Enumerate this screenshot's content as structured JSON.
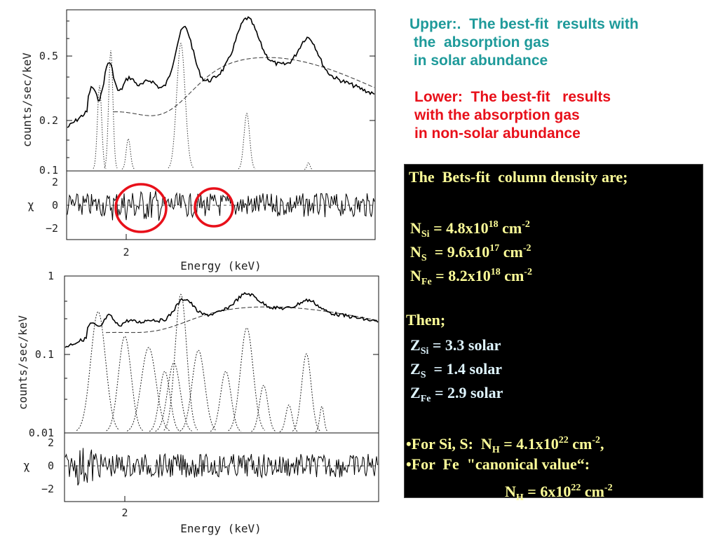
{
  "figure": {
    "upper_panel": {
      "y_axis_label": "counts/sec/keV",
      "y_ticks": [
        "0.5",
        "0.2",
        "0.1"
      ],
      "residual_label": "χ",
      "residual_ticks": [
        "2",
        "0",
        "−2"
      ],
      "x_tick": "2",
      "x_axis_label": "Energy (keV)"
    },
    "lower_panel": {
      "y_axis_label": "counts/sec/keV",
      "y_ticks": [
        "1",
        "0.1",
        "0.01"
      ],
      "residual_label": "χ",
      "residual_ticks": [
        "2",
        "0",
        "−2"
      ],
      "x_tick": "2",
      "x_axis_label": "Energy (keV)"
    },
    "highlight_color": "#e8101a"
  },
  "annotations": {
    "upper_note": "Upper:.  The best-fit  results with\n the  absorption gas\n in solar abundance",
    "lower_note": "Lower:  The best-fit   results\nwith the absorption gas\nin non-solar abundance",
    "upper_color": "#1e9a9a",
    "lower_color": "#e8101a"
  },
  "results": {
    "heading": "The  Bets-fit  column density are;",
    "column_densities": [
      {
        "symbol": "N",
        "element": "Si",
        "value": " = 4.8x10",
        "exponent": "18",
        "unit": " cm",
        "unit_exponent": "-2"
      },
      {
        "symbol": "N",
        "element": "S",
        "value": "  = 9.6x10",
        "exponent": "17",
        "unit": " cm",
        "unit_exponent": "-2"
      },
      {
        "symbol": "N",
        "element": "Fe",
        "value": " = 8.2x10",
        "exponent": "18",
        "unit": " cm",
        "unit_exponent": "-2"
      }
    ],
    "then_label": "Then;",
    "abundances": [
      {
        "symbol": "Z",
        "element": "Si",
        "value": " = 3.3 solar"
      },
      {
        "symbol": "Z",
        "element": "S",
        "value": "  = 1.4 solar"
      },
      {
        "symbol": "Z",
        "element": "Fe",
        "value": " = 2.9 solar"
      }
    ],
    "bullet_si_s": {
      "prefix": "•For Si, S:  N",
      "sub": "H",
      "value": " = 4.1x10",
      "exponent": "22",
      "unit": " cm",
      "unit_exponent": "-2",
      "suffix": ","
    },
    "bullet_fe": "•For  Fe  \"canonical value“:",
    "canonical": {
      "symbol": "N",
      "sub": "H",
      "value": " = 6x10",
      "exponent": "22",
      "unit": " cm",
      "unit_exponent": "-2"
    },
    "text_color": "#ffff99",
    "value_color": "#dff5ff"
  }
}
